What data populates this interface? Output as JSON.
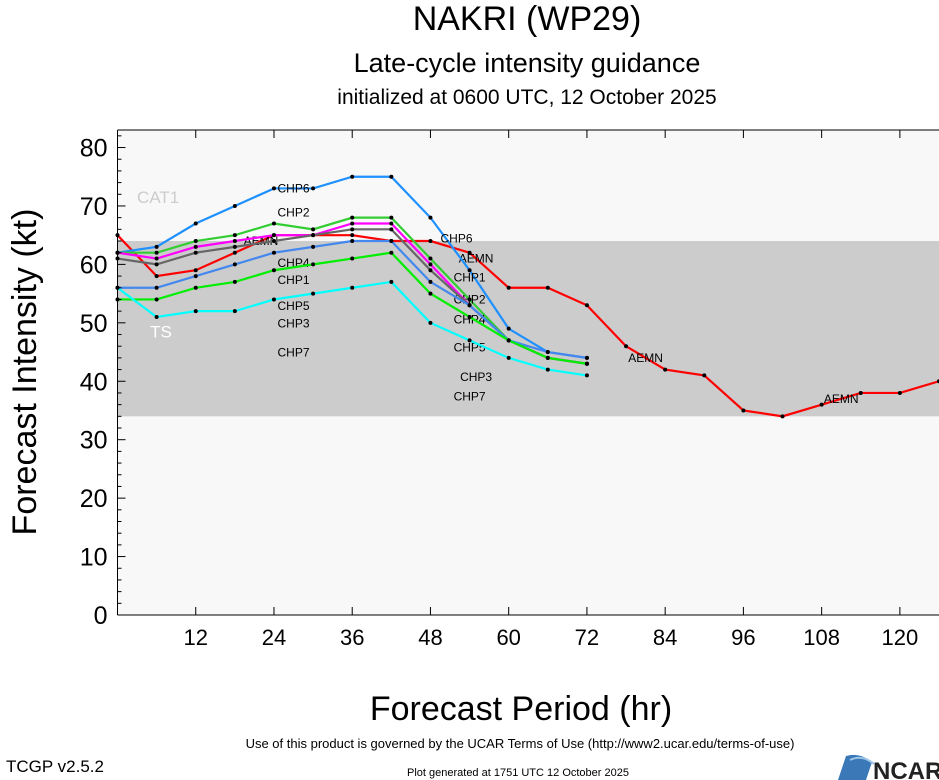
{
  "chart_data": {
    "type": "line",
    "title": "NAKRI (WP29)",
    "subtitle": "Late-cycle intensity guidance",
    "subtitle2": "initialized at 0600 UTC, 12 October 2025",
    "xlabel": "Forecast Period (hr)",
    "ylabel": "Forecast Intensity (kt)",
    "xlim": [
      0,
      126
    ],
    "ylim": [
      0,
      83
    ],
    "xticks": [
      12,
      24,
      36,
      48,
      60,
      72,
      84,
      96,
      108,
      120
    ],
    "yticks": [
      0,
      10,
      20,
      30,
      40,
      50,
      60,
      70,
      80
    ],
    "grid": false,
    "bands": [
      {
        "label": "TS",
        "from": 34,
        "to": 64,
        "color": "#cccccc"
      },
      {
        "label": "CAT1",
        "from": 64,
        "to": 83,
        "color": "#f8f8f8"
      }
    ],
    "series": [
      {
        "name": "AEMN",
        "color": "#ff0000",
        "x": [
          0,
          6,
          12,
          18,
          24,
          30,
          36,
          42,
          48,
          54,
          60,
          66,
          72,
          78,
          84,
          90,
          96,
          102,
          108,
          114,
          120,
          126
        ],
        "values": [
          65,
          58,
          59,
          62,
          65,
          65,
          65,
          64,
          64,
          62,
          56,
          56,
          53,
          46,
          42,
          41,
          35,
          34,
          36,
          38,
          38,
          40
        ],
        "label_at": [
          22,
          55,
          81,
          111
        ]
      },
      {
        "name": "CHP6",
        "color": "#1e90ff",
        "x": [
          0,
          6,
          12,
          18,
          24,
          30,
          36,
          42,
          48,
          54,
          60,
          66,
          72
        ],
        "values": [
          62,
          63,
          67,
          70,
          73,
          73,
          75,
          75,
          68,
          59,
          49,
          45,
          44
        ],
        "label_at": [
          27,
          52
        ]
      },
      {
        "name": "CHP2",
        "color": "#32cd32",
        "x": [
          0,
          6,
          12,
          18,
          24,
          30,
          36,
          42,
          48,
          54,
          60,
          66,
          72
        ],
        "values": [
          62,
          62,
          64,
          65,
          67,
          66,
          68,
          68,
          61,
          54,
          47,
          44,
          43
        ],
        "label_at": [
          27,
          54
        ]
      },
      {
        "name": "CHP4",
        "color": "#ff00ff",
        "x": [
          0,
          6,
          12,
          18,
          24,
          30,
          36,
          42,
          48,
          54,
          60,
          66,
          72
        ],
        "values": [
          62,
          61,
          63,
          64,
          65,
          65,
          67,
          67,
          60,
          53,
          47,
          44,
          43
        ],
        "label_at": [
          27,
          54
        ]
      },
      {
        "name": "CHP1",
        "color": "#666666",
        "x": [
          0,
          6,
          12,
          18,
          24,
          30,
          36,
          42,
          48,
          54,
          60
        ],
        "values": [
          61,
          60,
          62,
          63,
          64,
          65,
          66,
          66,
          59,
          53,
          47
        ],
        "label_at": [
          27,
          54
        ]
      },
      {
        "name": "CHP5",
        "color": "#4488ee",
        "x": [
          0,
          6,
          12,
          18,
          24,
          30,
          36,
          42,
          48,
          54,
          60,
          66,
          72
        ],
        "values": [
          56,
          56,
          58,
          60,
          62,
          63,
          64,
          64,
          57,
          53,
          47,
          45,
          44
        ],
        "label_at": [
          27,
          54
        ]
      },
      {
        "name": "CHP3",
        "color": "#00ee00",
        "x": [
          0,
          6,
          12,
          18,
          24,
          30,
          36,
          42,
          48,
          54,
          60,
          66,
          72
        ],
        "values": [
          54,
          54,
          56,
          57,
          59,
          60,
          61,
          62,
          55,
          51,
          47,
          44,
          43
        ],
        "label_at": [
          27,
          55
        ]
      },
      {
        "name": "CHP7",
        "color": "#00ffff",
        "x": [
          0,
          6,
          12,
          18,
          24,
          30,
          36,
          42,
          48,
          54,
          60,
          66,
          72
        ],
        "values": [
          56,
          51,
          52,
          52,
          54,
          55,
          56,
          57,
          50,
          47,
          44,
          42,
          41
        ],
        "label_at": [
          27,
          54
        ]
      }
    ]
  },
  "footer": {
    "version": "TCGP v2.5.2",
    "terms": "Use of this product is governed by the UCAR Terms of Use (http://www2.ucar.edu/terms-of-use)",
    "generated": "Plot generated at 1751 UTC   12 October 2025",
    "logo": "NCAR"
  }
}
